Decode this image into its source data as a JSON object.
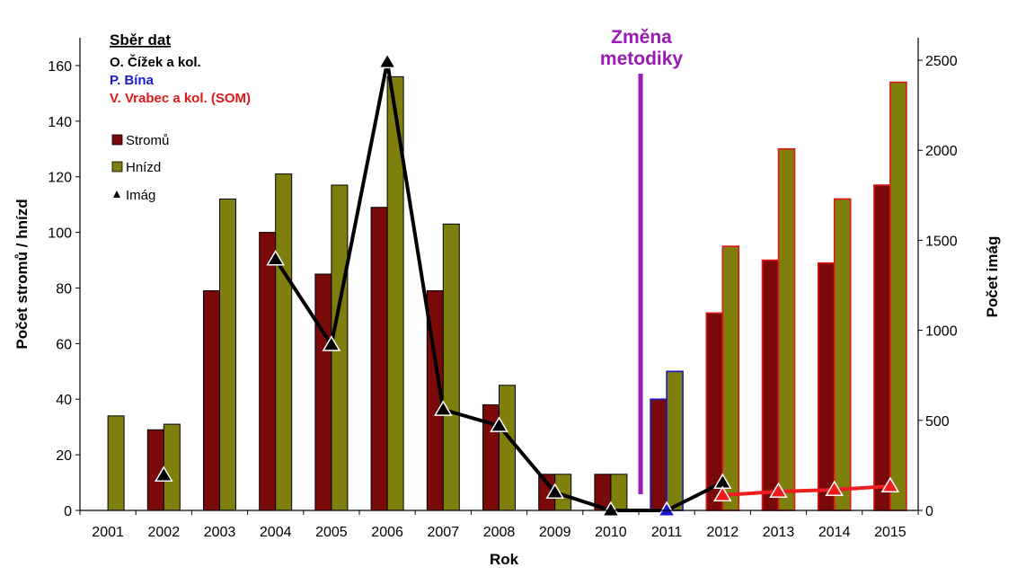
{
  "chart_data": {
    "type": "bar",
    "categories": [
      "2001",
      "2002",
      "2003",
      "2004",
      "2005",
      "2006",
      "2007",
      "2008",
      "2009",
      "2010",
      "2011",
      "2012",
      "2013",
      "2014",
      "2015"
    ],
    "xlabel": "Rok",
    "ylabel": "Počet stromů / hnízd",
    "ylabel_right": "Počet imág",
    "ylim": [
      0,
      170
    ],
    "yticks": [
      0,
      20,
      40,
      60,
      80,
      100,
      120,
      140,
      160
    ],
    "ylim_right": [
      0,
      2625
    ],
    "yticks_right": [
      0,
      500,
      1000,
      1500,
      2000,
      2500
    ],
    "series": [
      {
        "name": "Stromů",
        "axis": "left",
        "values": [
          null,
          29,
          79,
          100,
          85,
          109,
          79,
          38,
          13,
          13,
          40,
          71,
          90,
          89,
          117
        ]
      },
      {
        "name": "Hnízd",
        "axis": "left",
        "values": [
          34,
          31,
          112,
          121,
          117,
          156,
          103,
          45,
          13,
          13,
          50,
          95,
          130,
          112,
          154
        ]
      },
      {
        "name": "Imág",
        "axis": "right",
        "type": "line",
        "values": [
          null,
          195,
          null,
          1395,
          920,
          2490,
          560,
          470,
          100,
          0,
          0,
          155,
          null,
          null,
          null
        ]
      },
      {
        "axis": "right",
        "type": "line",
        "values": [
          null,
          null,
          null,
          null,
          null,
          null,
          null,
          null,
          null,
          null,
          null,
          85,
          105,
          115,
          135
        ]
      }
    ],
    "source_groups": [
      {
        "label": "O. Čížek a kol.",
        "color": "#000000",
        "years": [
          "2001",
          "2002",
          "2003",
          "2004",
          "2005",
          "2006",
          "2007",
          "2008",
          "2009",
          "2010"
        ]
      },
      {
        "label": "P. Bína",
        "color": "#1a1acc",
        "years": [
          "2011"
        ]
      },
      {
        "label": "V. Vrabec a kol. (SOM)",
        "color": "#e01818",
        "years": [
          "2012",
          "2013",
          "2014",
          "2015"
        ]
      }
    ],
    "annotation": {
      "text_lines": [
        "Změna",
        "metodiky"
      ],
      "color": "#9a1ab8",
      "after_category": "2010"
    },
    "notes_title": "Sběr dat",
    "legend": {
      "position": "top-left",
      "entries": [
        "Stromů",
        "Hnízd",
        "Imág"
      ]
    },
    "colors": {
      "stromu": "#7a0a0a",
      "hnizd": "#7f7f0e",
      "imag_line": "#000000",
      "imag_line_red": "#ee1c1c"
    },
    "grid": false
  }
}
